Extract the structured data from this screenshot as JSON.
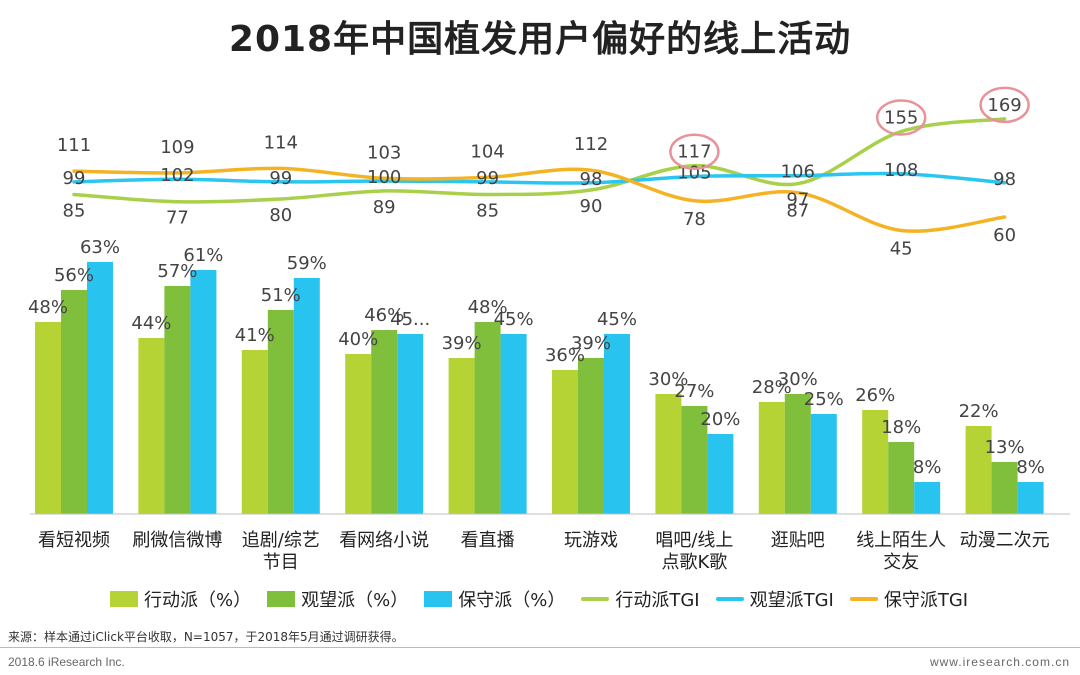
{
  "title": "2018年中国植发用户偏好的线上活动",
  "source": "来源：样本通过iClick平台收取，N=1057，于2018年5月通过调研获得。",
  "footer_left": "2018.6 iResearch Inc.",
  "footer_right": "www.iresearch.com.cn",
  "colors": {
    "action_bar": "#b5d334",
    "watch_bar": "#7fbf3c",
    "conserve_bar": "#28c3ee",
    "action_line": "#a8d04a",
    "watch_line": "#2bc6f0",
    "conserve_line": "#f5b323",
    "highlight_circle": "#e8929a"
  },
  "chart_data": {
    "type": "bar",
    "categories": [
      "看短视频",
      "刷微信微博",
      "追剧/综艺节目",
      "看网络小说",
      "看直播",
      "玩游戏",
      "唱吧/线上点歌K歌",
      "逛贴吧",
      "线上陌生人交友",
      "动漫二次元"
    ],
    "category_lines": [
      [
        "看短视频"
      ],
      [
        "刷微信微博"
      ],
      [
        "追剧/综艺",
        "节目"
      ],
      [
        "看网络小说"
      ],
      [
        "看直播"
      ],
      [
        "玩游戏"
      ],
      [
        "唱吧/线上",
        "点歌K歌"
      ],
      [
        "逛贴吧"
      ],
      [
        "线上陌生人",
        "交友"
      ],
      [
        "动漫二次元"
      ]
    ],
    "series": [
      {
        "name": "行动派（%）",
        "type": "bar",
        "values": [
          48,
          44,
          41,
          40,
          39,
          36,
          30,
          28,
          26,
          22
        ],
        "labels": [
          "48%",
          "44%",
          "41%",
          "40%",
          "39%",
          "36%",
          "30%",
          "28%",
          "26%",
          "22%"
        ]
      },
      {
        "name": "观望派（%）",
        "type": "bar",
        "values": [
          56,
          57,
          51,
          46,
          48,
          39,
          27,
          30,
          18,
          13
        ],
        "labels": [
          "56%",
          "57%",
          "51%",
          "46%",
          "48%",
          "39%",
          "27%",
          "30%",
          "18%",
          "13%"
        ]
      },
      {
        "name": "保守派（%）",
        "type": "bar",
        "values": [
          63,
          61,
          59,
          45,
          45,
          45,
          20,
          25,
          8,
          8
        ],
        "labels": [
          "63%",
          "61%",
          "59%",
          "45...",
          "45%",
          "45%",
          "20%",
          "25%",
          "8%",
          "8%"
        ]
      },
      {
        "name": "行动派TGI",
        "type": "line",
        "values": [
          85,
          77,
          80,
          89,
          85,
          90,
          117,
          97,
          155,
          169
        ]
      },
      {
        "name": "观望派TGI",
        "type": "line",
        "values": [
          99,
          102,
          99,
          100,
          99,
          98,
          105,
          106,
          108,
          98
        ]
      },
      {
        "name": "保守派TGI",
        "type": "line",
        "values": [
          111,
          109,
          114,
          103,
          104,
          112,
          78,
          87,
          45,
          60
        ]
      }
    ],
    "highlighted": [
      {
        "series": "行动派TGI",
        "index": 6
      },
      {
        "series": "行动派TGI",
        "index": 8
      },
      {
        "series": "行动派TGI",
        "index": 9
      }
    ],
    "legend_position": "bottom",
    "grid": false
  }
}
